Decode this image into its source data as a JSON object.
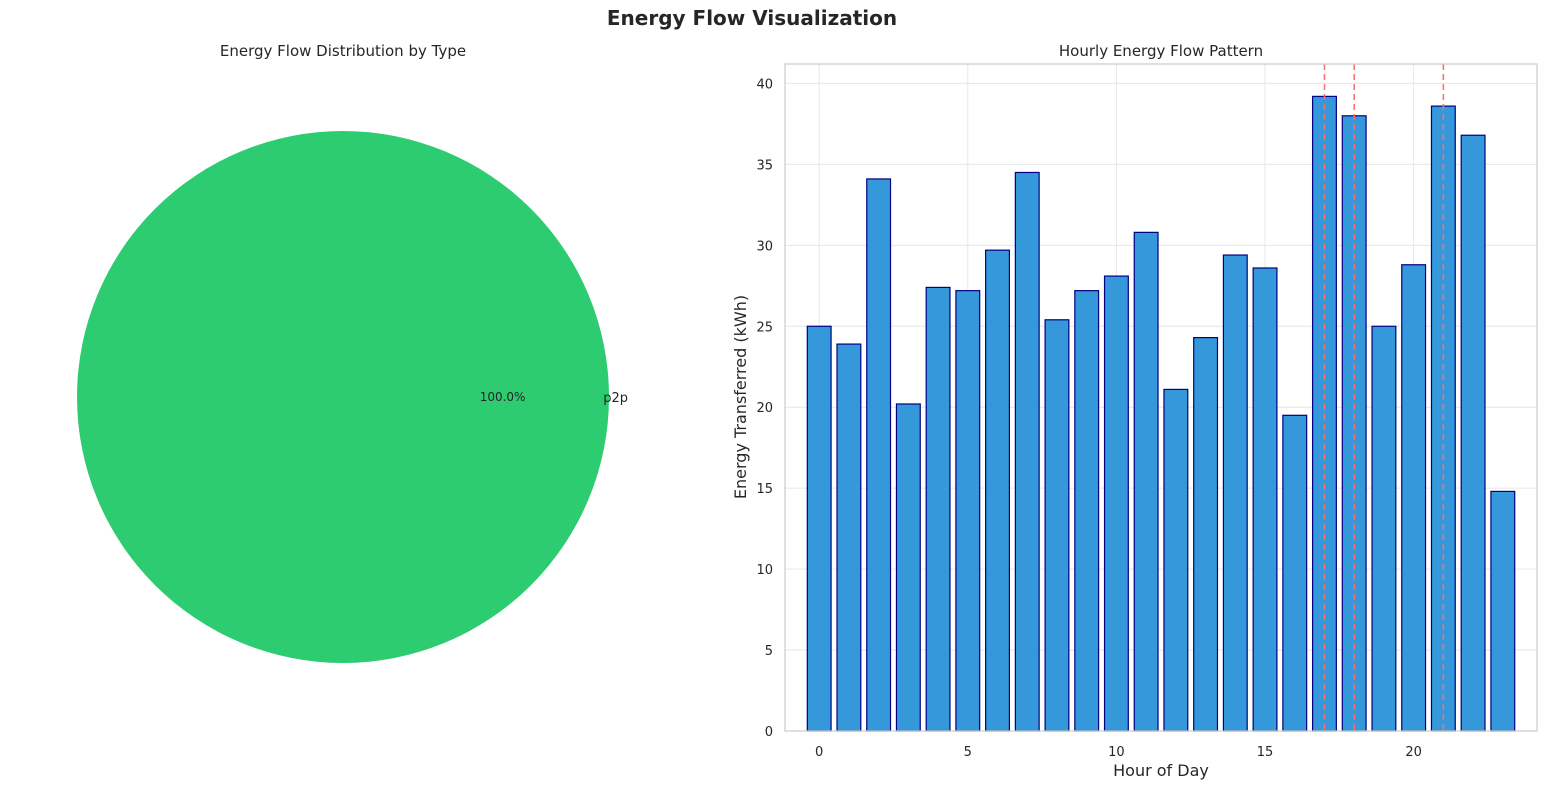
{
  "figure": {
    "title": "Energy Flow Visualization"
  },
  "chart_data": [
    {
      "type": "pie",
      "title": "Energy Flow Distribution by Type",
      "labels": [
        "p2p"
      ],
      "values": [
        100.0
      ],
      "autopct_labels": [
        "100.0%"
      ],
      "colors": [
        "#2ecc71"
      ]
    },
    {
      "type": "bar",
      "title": "Hourly Energy Flow Pattern",
      "xlabel": "Hour of Day",
      "ylabel": "Energy Transferred (kWh)",
      "categories": [
        0,
        1,
        2,
        3,
        4,
        5,
        6,
        7,
        8,
        9,
        10,
        11,
        12,
        13,
        14,
        15,
        16,
        17,
        18,
        19,
        20,
        21,
        22,
        23
      ],
      "values": [
        25.0,
        23.9,
        34.1,
        20.2,
        27.4,
        27.2,
        29.7,
        34.5,
        25.4,
        27.2,
        28.1,
        30.8,
        21.1,
        24.3,
        29.4,
        28.6,
        19.5,
        39.2,
        38.0,
        25.0,
        28.8,
        38.6,
        36.8,
        14.8
      ],
      "xticks": [
        0,
        5,
        10,
        15,
        20
      ],
      "yticks": [
        0,
        5,
        10,
        15,
        20,
        25,
        30,
        35,
        40
      ],
      "xlim": [
        -1.15,
        24.15
      ],
      "ylim": [
        0,
        41.2
      ],
      "grid": true,
      "bar_color": "#3498db",
      "bar_edge_color": "#000080",
      "peak_hour_lines": [
        17,
        18,
        21
      ],
      "peak_line_color": "#ff6b6b"
    }
  ]
}
